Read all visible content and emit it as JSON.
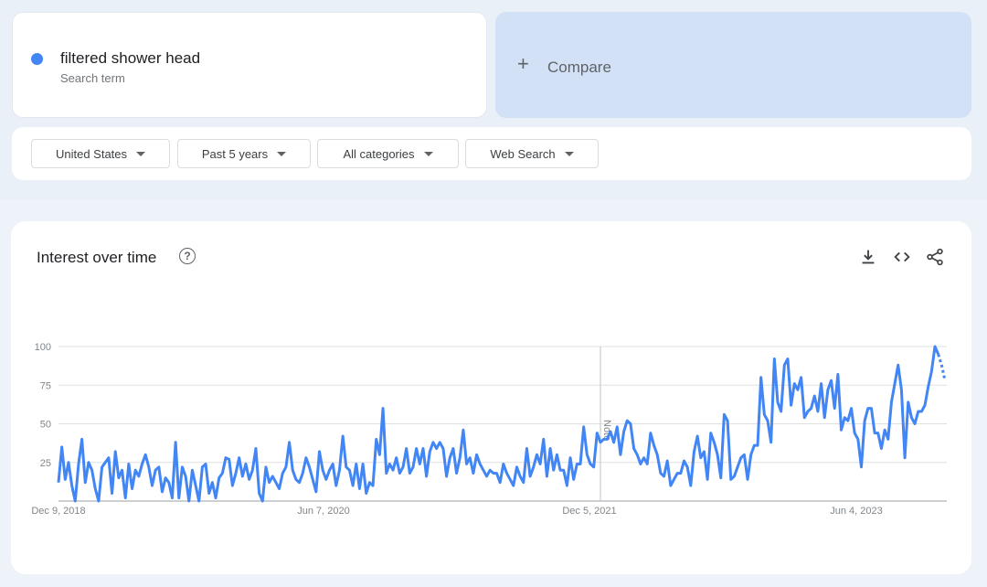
{
  "search": {
    "term": "filtered shower head",
    "term_sublabel": "Search term",
    "term_color": "#4285f4",
    "compare_label": "Compare",
    "compare_icon": "plus-icon"
  },
  "filters": [
    {
      "label": "United States"
    },
    {
      "label": "Past 5 years"
    },
    {
      "label": "All categories"
    },
    {
      "label": "Web Search"
    }
  ],
  "chart_section": {
    "title": "Interest over time",
    "help_icon": "help-circle-icon",
    "tools": [
      "download-icon",
      "embed-code-icon",
      "share-icon"
    ]
  },
  "chart_data": {
    "type": "line",
    "title": "Interest over time",
    "xlabel": "",
    "ylabel": "",
    "ylim": [
      0,
      100
    ],
    "yticks": [
      25,
      50,
      75,
      100
    ],
    "x_ticks": [
      "Dec 9, 2018",
      "Jun 7, 2020",
      "Dec 5, 2021",
      "Jun 4, 2023"
    ],
    "note_label": "Note",
    "grid": true,
    "series": [
      {
        "color": "#4285f4",
        "values": [
          12,
          35,
          14,
          25,
          10,
          0,
          24,
          40,
          12,
          25,
          20,
          8,
          0,
          22,
          25,
          28,
          5,
          32,
          15,
          20,
          2,
          24,
          8,
          20,
          16,
          24,
          30,
          22,
          10,
          20,
          22,
          6,
          15,
          12,
          2,
          38,
          2,
          22,
          16,
          0,
          20,
          10,
          0,
          22,
          24,
          5,
          12,
          2,
          15,
          18,
          28,
          27,
          10,
          18,
          28,
          16,
          24,
          14,
          20,
          34,
          5,
          0,
          22,
          12,
          16,
          12,
          8,
          18,
          22,
          38,
          20,
          14,
          12,
          18,
          28,
          22,
          14,
          6,
          32,
          20,
          14,
          20,
          24,
          10,
          20,
          42,
          22,
          20,
          10,
          24,
          8,
          24,
          5,
          12,
          10,
          40,
          30,
          60,
          18,
          24,
          20,
          28,
          18,
          22,
          34,
          18,
          22,
          34,
          24,
          34,
          16,
          32,
          38,
          34,
          38,
          34,
          16,
          28,
          34,
          18,
          28,
          46,
          24,
          28,
          18,
          30,
          24,
          20,
          16,
          20,
          18,
          18,
          12,
          24,
          18,
          14,
          10,
          22,
          16,
          12,
          34,
          16,
          22,
          30,
          24,
          40,
          16,
          34,
          20,
          30,
          20,
          20,
          10,
          28,
          14,
          24,
          24,
          48,
          30,
          24,
          22,
          44,
          38,
          40,
          40,
          45,
          38,
          48,
          30,
          45,
          52,
          50,
          34,
          30,
          24,
          28,
          24,
          44,
          36,
          30,
          18,
          16,
          26,
          10,
          14,
          18,
          18,
          26,
          22,
          10,
          32,
          42,
          28,
          32,
          14,
          44,
          38,
          30,
          15,
          56,
          52,
          14,
          16,
          22,
          28,
          30,
          14,
          30,
          36,
          36,
          80,
          56,
          52,
          38,
          92,
          64,
          58,
          88,
          92,
          62,
          76,
          72,
          80,
          54,
          58,
          60,
          68,
          58,
          76,
          54,
          72,
          78,
          60,
          82,
          46,
          54,
          52,
          60,
          44,
          40,
          22,
          52,
          60,
          60,
          44,
          44,
          34,
          46,
          40,
          64,
          76,
          88,
          72,
          28,
          64,
          54,
          50,
          58,
          58,
          62,
          74,
          84,
          100,
          95,
          88,
          78
        ]
      }
    ]
  }
}
